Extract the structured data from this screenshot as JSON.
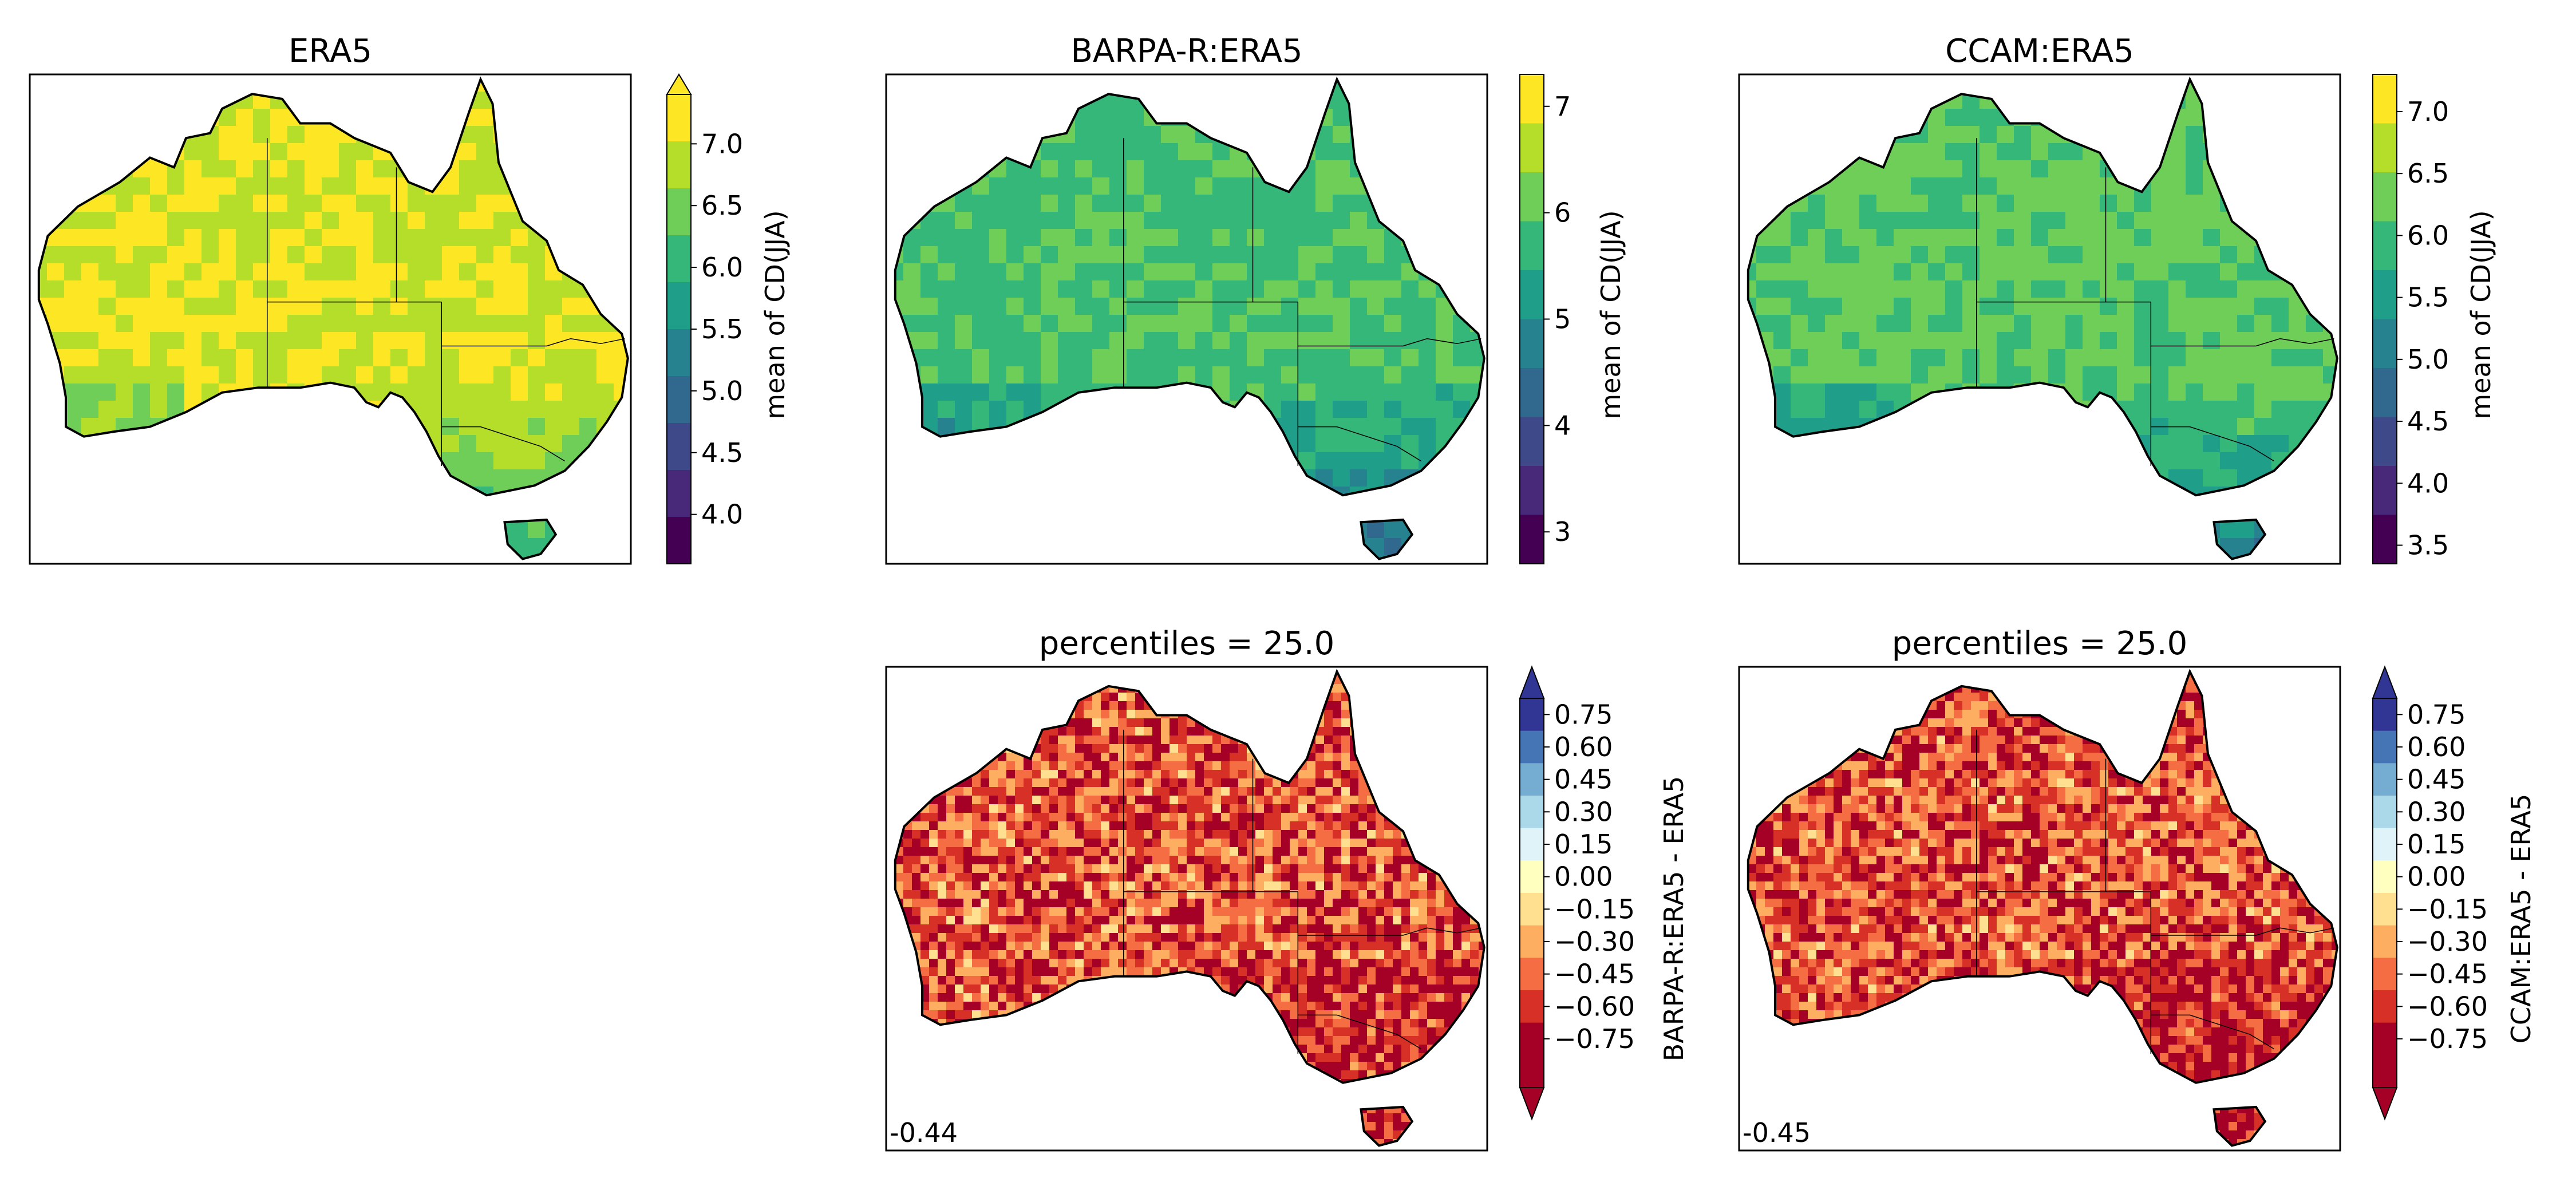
{
  "panels": [
    {
      "id": "era5",
      "title": "ERA5",
      "kind": "mean",
      "field_level": 0.9,
      "variation": 0.05,
      "corner": ""
    },
    {
      "id": "barpa-mean",
      "title": "BARPA-R:ERA5",
      "kind": "mean",
      "field_level": 0.68,
      "variation": 0.07,
      "corner": ""
    },
    {
      "id": "ccam-mean",
      "title": "CCAM:ERA5",
      "kind": "mean",
      "field_level": 0.72,
      "variation": 0.07,
      "corner": ""
    },
    {
      "id": "barpa-diff",
      "title": "percentiles = 25.0",
      "kind": "diff",
      "field_level": -0.44,
      "variation": 0.2,
      "corner": "-0.44"
    },
    {
      "id": "ccam-diff",
      "title": "percentiles = 25.0",
      "kind": "diff",
      "field_level": -0.45,
      "variation": 0.2,
      "corner": "-0.45"
    }
  ],
  "colorbars": [
    {
      "id": "cb-era5",
      "label": "mean of CD(JJA)",
      "kind": "viridis",
      "vmin": 3.6,
      "vmax": 7.4,
      "extend_top": true,
      "ticks": [
        "4.0",
        "4.5",
        "5.0",
        "5.5",
        "6.0",
        "6.5",
        "7.0"
      ]
    },
    {
      "id": "cb-barpa-mean",
      "label": "mean of CD(JJA)",
      "kind": "viridis",
      "vmin": 2.7,
      "vmax": 7.3,
      "extend_top": false,
      "ticks": [
        "3",
        "4",
        "5",
        "6",
        "7"
      ]
    },
    {
      "id": "cb-ccam-mean",
      "label": "mean of CD(JJA)",
      "kind": "viridis",
      "vmin": 3.35,
      "vmax": 7.3,
      "extend_top": false,
      "ticks": [
        "3.5",
        "4.0",
        "4.5",
        "5.0",
        "5.5",
        "6.0",
        "6.5",
        "7.0"
      ]
    },
    {
      "id": "cb-barpa-diff",
      "label": "BARPA-R:ERA5 - ERA5",
      "kind": "diverging",
      "ticks": [
        "0.75",
        "0.60",
        "0.45",
        "0.30",
        "0.15",
        "0.00",
        "−0.15",
        "−0.30",
        "−0.45",
        "−0.60",
        "−0.75"
      ]
    },
    {
      "id": "cb-ccam-diff",
      "label": "CCAM:ERA5 - ERA5",
      "kind": "diverging",
      "ticks": [
        "0.75",
        "0.60",
        "0.45",
        "0.30",
        "0.15",
        "0.00",
        "−0.15",
        "−0.30",
        "−0.45",
        "−0.60",
        "−0.75"
      ]
    }
  ],
  "colors": {
    "viridis": [
      "#440154",
      "#482878",
      "#3e4989",
      "#31688e",
      "#26828e",
      "#1f9e89",
      "#35b779",
      "#6ece58",
      "#b5de2b",
      "#fde725"
    ],
    "diverging": [
      "#a50026",
      "#d73027",
      "#f46d43",
      "#fdae61",
      "#fee090",
      "#ffffbf",
      "#e0f3f8",
      "#abd9e9",
      "#74add1",
      "#4575b4",
      "#313695"
    ]
  }
}
